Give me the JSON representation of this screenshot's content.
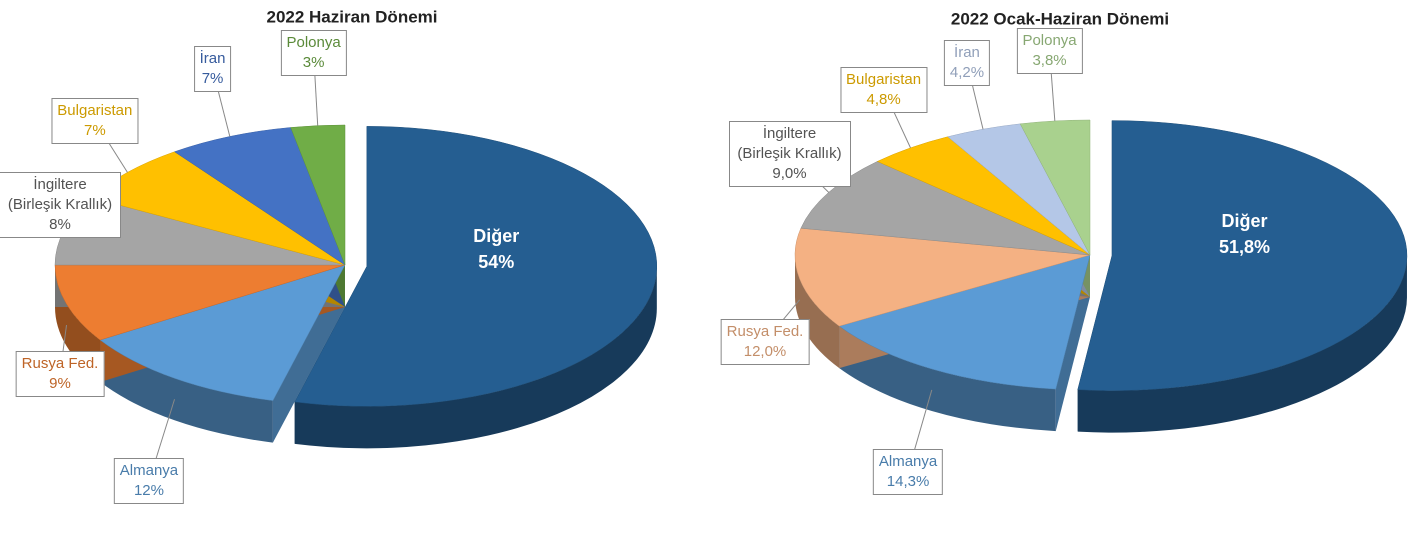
{
  "chart_data": [
    {
      "type": "pie",
      "title": "2022 Haziran Dönemi",
      "categories": [
        "Diğer",
        "Almanya",
        "Rusya Fed.",
        "İngiltere (Birleşik Krallık)",
        "Bulgaristan",
        "İran",
        "Polonya"
      ],
      "values": [
        54,
        12,
        9,
        8,
        7,
        7,
        3
      ],
      "value_labels": [
        "54%",
        "12%",
        "9%",
        "8%",
        "7%",
        "7%",
        "3%"
      ],
      "colors": [
        "#255e91",
        "#5b9bd5",
        "#ed7d31",
        "#a5a5a5",
        "#ffc000",
        "#4472c4",
        "#70ad47"
      ]
    },
    {
      "type": "pie",
      "title": "2022 Ocak-Haziran Dönemi",
      "categories": [
        "Diğer",
        "Almanya",
        "Rusya Fed.",
        "İngiltere (Birleşik Krallık)",
        "Bulgaristan",
        "İran",
        "Polonya"
      ],
      "values": [
        51.8,
        14.3,
        12.0,
        9.0,
        4.8,
        4.2,
        3.8
      ],
      "value_labels": [
        "51,8%",
        "14,3%",
        "12,0%",
        "9,0%",
        "4,8%",
        "4,2%",
        "3,8%"
      ],
      "colors": [
        "#255e91",
        "#5b9bd5",
        "#f4b183",
        "#a5a5a5",
        "#ffc000",
        "#b4c7e7",
        "#a9d18e"
      ]
    }
  ]
}
